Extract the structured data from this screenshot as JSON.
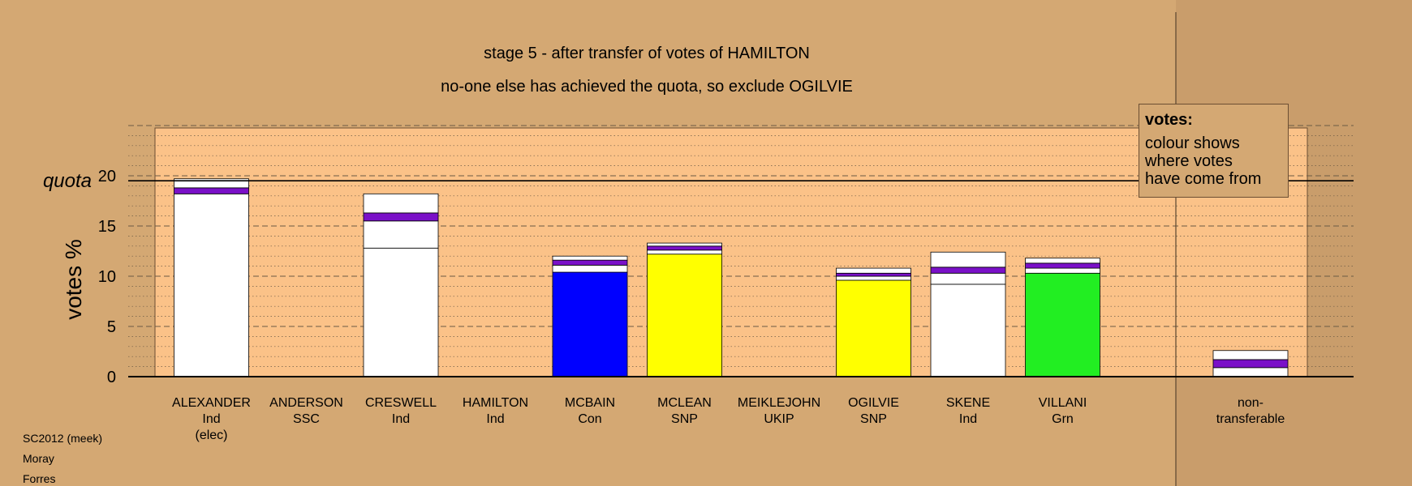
{
  "header": {
    "title": "stage 5 - after transfer of votes of HAMILTON",
    "subtitle": "no-one else has achieved the quota, so exclude OGILVIE"
  },
  "legend": {
    "title": "votes:",
    "body": "colour shows\nwhere votes\nhave come from"
  },
  "footer": [
    "SC2012 (meek)",
    "Moray",
    "Forres"
  ],
  "colors": {
    "background": "#d4a873",
    "plot_area": "#fbc288",
    "Ind": "#ffffff",
    "Con": "#0000ff",
    "SNP": "#ffff00",
    "Grn": "#22ee22",
    "transfer": "#7a10c8"
  },
  "chart_data": {
    "type": "bar",
    "stacked": true,
    "ylabel": "votes %",
    "ylim": [
      0,
      25
    ],
    "yticks": [
      0,
      5,
      10,
      15,
      20
    ],
    "quota": 19.5,
    "quota_label": "quota",
    "grid": "dotted minor, dashed major",
    "categories": [
      {
        "name": "ALEXANDER",
        "party": "Ind",
        "note": "(elec)"
      },
      {
        "name": "ANDERSON",
        "party": "SSC"
      },
      {
        "name": "CRESWELL",
        "party": "Ind"
      },
      {
        "name": "HAMILTON",
        "party": "Ind"
      },
      {
        "name": "MCBAIN",
        "party": "Con"
      },
      {
        "name": "MCLEAN",
        "party": "SNP"
      },
      {
        "name": "MEIKLEJOHN",
        "party": "UKIP"
      },
      {
        "name": "OGILVIE",
        "party": "SNP"
      },
      {
        "name": "SKENE",
        "party": "Ind"
      },
      {
        "name": "VILLANI",
        "party": "Grn"
      },
      {
        "name": "non-",
        "party": "transferable"
      }
    ],
    "segments": [
      [
        {
          "value": 18.2,
          "color": "Ind"
        },
        {
          "value": 0.6,
          "color": "transfer"
        },
        {
          "value": 0.9,
          "color": "Ind"
        }
      ],
      [],
      [
        {
          "value": 12.8,
          "color": "Ind"
        },
        {
          "value": 2.7,
          "color": "Ind"
        },
        {
          "value": 0.8,
          "color": "transfer"
        },
        {
          "value": 1.9,
          "color": "Ind"
        }
      ],
      [],
      [
        {
          "value": 10.4,
          "color": "Con"
        },
        {
          "value": 0.7,
          "color": "Ind"
        },
        {
          "value": 0.5,
          "color": "transfer"
        },
        {
          "value": 0.4,
          "color": "Ind"
        }
      ],
      [
        {
          "value": 12.2,
          "color": "SNP"
        },
        {
          "value": 0.4,
          "color": "Ind"
        },
        {
          "value": 0.4,
          "color": "transfer"
        },
        {
          "value": 0.3,
          "color": "Ind"
        }
      ],
      [],
      [
        {
          "value": 9.6,
          "color": "SNP"
        },
        {
          "value": 0.4,
          "color": "Ind"
        },
        {
          "value": 0.3,
          "color": "transfer"
        },
        {
          "value": 0.5,
          "color": "Ind"
        }
      ],
      [
        {
          "value": 9.2,
          "color": "Ind"
        },
        {
          "value": 1.1,
          "color": "Ind"
        },
        {
          "value": 0.6,
          "color": "transfer"
        },
        {
          "value": 1.5,
          "color": "Ind"
        }
      ],
      [
        {
          "value": 10.3,
          "color": "Grn"
        },
        {
          "value": 0.5,
          "color": "Ind"
        },
        {
          "value": 0.5,
          "color": "transfer"
        },
        {
          "value": 0.5,
          "color": "Ind"
        }
      ],
      [
        {
          "value": 0.9,
          "color": "Ind"
        },
        {
          "value": 0.8,
          "color": "transfer"
        },
        {
          "value": 0.9,
          "color": "Ind"
        }
      ]
    ]
  }
}
